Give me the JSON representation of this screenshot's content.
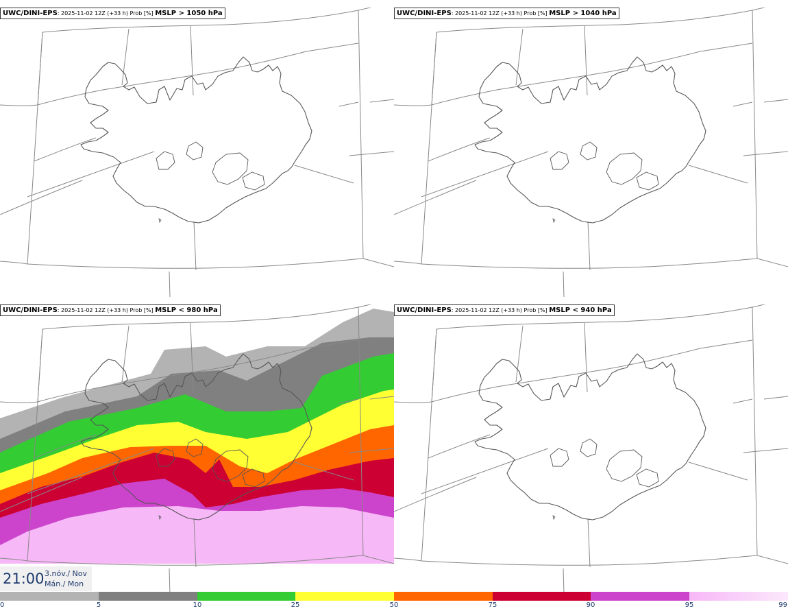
{
  "panels": [
    {
      "model": "UWC/DINI-EPS",
      "meta": ": 2025-11-02 12Z (+33 h) Prob [%] ",
      "threshold": "MSLP > 1050 hPa",
      "filled": false
    },
    {
      "model": "UWC/DINI-EPS",
      "meta": ": 2025-11-02 12Z (+33 h) Prob [%] ",
      "threshold": "MSLP > 1040 hPa",
      "filled": false
    },
    {
      "model": "UWC/DINI-EPS",
      "meta": ": 2025-11-02 12Z (+33 h) Prob [%] ",
      "threshold": "MSLP < 980 hPa",
      "filled": true
    },
    {
      "model": "UWC/DINI-EPS",
      "meta": ": 2025-11-02 12Z (+33 h) Prob [%] ",
      "threshold": "MSLP < 940 hPa",
      "filled": false
    }
  ],
  "time": {
    "clock": "21:00",
    "date": "3.nóv./ Nov",
    "weekday": "Mán./ Mon"
  },
  "legend": {
    "ticks": [
      "0",
      "5",
      "10",
      "25",
      "50",
      "75",
      "90",
      "95",
      "99"
    ],
    "colors": [
      "#ffffff",
      "#b3b3b3",
      "#808080",
      "#33cc33",
      "#ffff33",
      "#ff6600",
      "#cc0033",
      "#cc44cc",
      "#f7b8f7"
    ]
  },
  "colors": {
    "coast": "#555555",
    "grid": "#888888"
  }
}
